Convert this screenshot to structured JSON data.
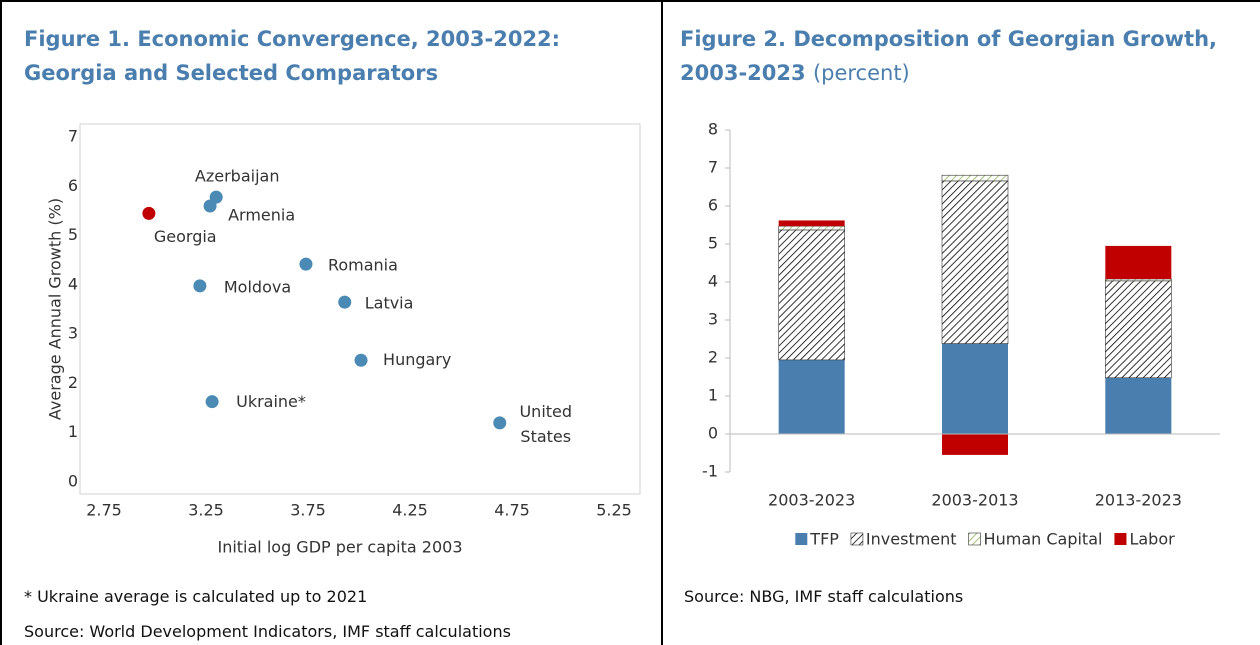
{
  "chart_data": [
    {
      "type": "scatter",
      "title": "Figure 1. Economic Convergence, 2003-2022: Georgia and Selected Comparators",
      "x_label": "Initial log GDP per capita 2003",
      "y_label": "Average Annual Growth (%)",
      "labels": [
        "Azerbaijan",
        "Armenia",
        "Georgia",
        "Romania",
        "Moldova",
        "Latvia",
        "Hungary",
        "Ukraine*",
        "United States"
      ],
      "x": [
        3.3,
        3.27,
        2.97,
        3.74,
        3.22,
        3.93,
        4.01,
        3.28,
        4.69
      ],
      "values": [
        5.78,
        5.6,
        5.45,
        4.42,
        3.98,
        3.65,
        2.47,
        1.63,
        1.2
      ],
      "colors": [
        "#4a8ab5",
        "#4a8ab5",
        "#c00000",
        "#4a8ab5",
        "#4a8ab5",
        "#4a8ab5",
        "#4a8ab5",
        "#4a8ab5",
        "#4a8ab5"
      ],
      "xlim": [
        2.75,
        5.25
      ],
      "xticks": [
        2.75,
        3.25,
        3.75,
        4.25,
        4.75,
        5.25
      ],
      "ylim": [
        0,
        7
      ],
      "yticks": [
        0,
        1,
        2,
        3,
        4,
        5,
        6,
        7
      ],
      "notes": [
        "* Ukraine average is calculated up to 2021",
        "Source: World Development Indicators, IMF staff calculations"
      ]
    },
    {
      "type": "bar",
      "stacked": true,
      "title": "Figure 2. Decomposition of Georgian Growth, 2003-2023",
      "subtitle": "(percent)",
      "categories": [
        "2003-2023",
        "2003-2013",
        "2013-2023"
      ],
      "series": [
        {
          "name": "TFP",
          "color": "#4a7eae",
          "values": [
            1.95,
            2.38,
            1.48
          ]
        },
        {
          "name": "Investment",
          "color": "#000000",
          "pattern": "diagonal",
          "values": [
            3.42,
            4.28,
            2.55
          ]
        },
        {
          "name": "Human Capital",
          "color": "#8db35a",
          "pattern": "diagonal",
          "values": [
            0.1,
            0.15,
            0.05
          ]
        },
        {
          "name": "Labor",
          "color": "#c00000",
          "values": [
            0.15,
            -0.55,
            0.87
          ]
        }
      ],
      "ylim": [
        -1,
        8
      ],
      "yticks": [
        -1,
        0,
        1,
        2,
        3,
        4,
        5,
        6,
        7,
        8
      ],
      "legend": "bottom",
      "notes": [
        "Source: NBG, IMF staff calculations"
      ]
    }
  ]
}
